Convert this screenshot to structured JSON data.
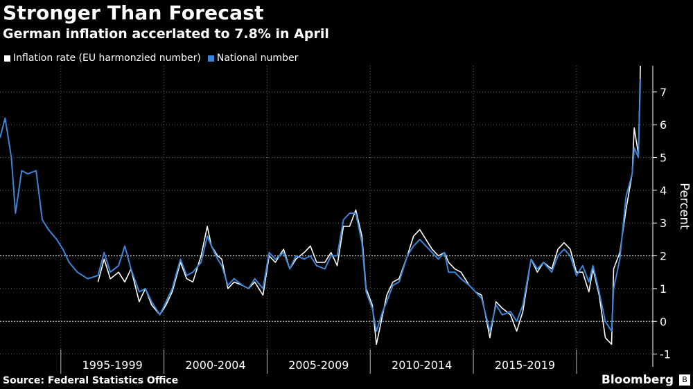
{
  "header": {
    "title": "Stronger Than Forecast",
    "subtitle": "German inflation accerlated to 7.8% in April"
  },
  "footer": {
    "source": "Source: Federal Statistics Office",
    "brand": "Bloomberg",
    "brand_badge": "B"
  },
  "colors": {
    "eu": "#ffffff",
    "national": "#3b86d8",
    "grid": "#6b6b6b",
    "background": "#000000"
  },
  "chart_data": {
    "type": "line",
    "title": "Stronger Than Forecast",
    "subtitle": "German inflation accerlated to 7.8% in April",
    "xlabel": "",
    "ylabel": "Percent",
    "ylim": [
      -1.6,
      7.8
    ],
    "xlim": [
      1991.25,
      2022.9
    ],
    "yticks": [
      -1,
      0,
      1,
      2,
      3,
      4,
      5,
      6,
      7
    ],
    "ytick_labels": [
      "-1",
      "0",
      "1",
      "2",
      "3",
      "4",
      "5",
      "6",
      "7"
    ],
    "x_period_boundaries": [
      1994.2,
      1999.2,
      2004.2,
      2009.2,
      2014.2,
      2019.2
    ],
    "x_period_labels": [
      "1995-1999",
      "2000-2004",
      "2005-2009",
      "2010-2014",
      "2015-2019"
    ],
    "x_period_centers": [
      1996.7,
      2001.7,
      2006.7,
      2011.7,
      2016.7
    ],
    "reference_lines": [
      0,
      2
    ],
    "legend": [
      "Inflation rate (EU harmonzied number)",
      "National number"
    ],
    "series": [
      {
        "name": "Inflation rate (EU harmonzied number)",
        "x": [
          1996.0,
          1996.3,
          1996.6,
          1997.0,
          1997.3,
          1997.6,
          1998.0,
          1998.3,
          1998.6,
          1999.0,
          1999.3,
          1999.6,
          2000.0,
          2000.3,
          2000.6,
          2001.0,
          2001.3,
          2001.5,
          2001.8,
          2002.0,
          2002.3,
          2002.6,
          2003.0,
          2003.3,
          2003.6,
          2004.0,
          2004.3,
          2004.6,
          2005.0,
          2005.3,
          2005.6,
          2006.0,
          2006.3,
          2006.6,
          2007.0,
          2007.3,
          2007.6,
          2007.9,
          2008.2,
          2008.5,
          2008.8,
          2009.0,
          2009.3,
          2009.5,
          2009.8,
          2010.0,
          2010.3,
          2010.6,
          2011.0,
          2011.3,
          2011.6,
          2011.9,
          2012.2,
          2012.5,
          2012.8,
          2013.0,
          2013.3,
          2013.6,
          2014.0,
          2014.3,
          2014.6,
          2015.0,
          2015.3,
          2015.6,
          2016.0,
          2016.3,
          2016.6,
          2017.0,
          2017.3,
          2017.6,
          2018.0,
          2018.3,
          2018.6,
          2018.9,
          2019.2,
          2019.5,
          2019.8,
          2020.0,
          2020.3,
          2020.6,
          2020.9,
          2021.0,
          2021.3,
          2021.6,
          2021.9,
          2022.0,
          2022.2,
          2022.3
        ],
        "values": [
          1.2,
          1.9,
          1.3,
          1.5,
          1.2,
          1.6,
          0.6,
          1.0,
          0.5,
          0.2,
          0.5,
          0.9,
          1.8,
          1.3,
          1.2,
          2.0,
          2.9,
          2.3,
          2.0,
          1.9,
          1.0,
          1.2,
          1.1,
          1.0,
          1.2,
          0.8,
          2.0,
          1.8,
          2.2,
          1.6,
          1.9,
          2.1,
          2.3,
          1.8,
          1.8,
          2.1,
          1.7,
          2.9,
          2.9,
          3.4,
          2.6,
          1.0,
          0.5,
          -0.7,
          0.2,
          0.8,
          1.2,
          1.3,
          2.0,
          2.6,
          2.8,
          2.5,
          2.2,
          2.0,
          2.1,
          1.8,
          1.6,
          1.5,
          1.1,
          0.9,
          0.8,
          -0.5,
          0.6,
          0.4,
          0.2,
          -0.3,
          0.3,
          1.9,
          1.5,
          1.8,
          1.6,
          2.2,
          2.4,
          2.2,
          1.5,
          1.5,
          0.9,
          1.6,
          0.8,
          -0.5,
          -0.7,
          1.6,
          2.1,
          3.4,
          4.5,
          5.9,
          5.1,
          7.8
        ]
      },
      {
        "name": "National number",
        "x": [
          1991.25,
          1991.5,
          1991.8,
          1992.0,
          1992.3,
          1992.6,
          1993.0,
          1993.3,
          1993.6,
          1994.0,
          1994.3,
          1994.6,
          1995.0,
          1995.5,
          1996.0,
          1996.3,
          1996.6,
          1997.0,
          1997.3,
          1997.6,
          1998.0,
          1998.3,
          1998.6,
          1999.0,
          1999.3,
          1999.6,
          2000.0,
          2000.3,
          2000.6,
          2001.0,
          2001.3,
          2001.5,
          2001.8,
          2002.0,
          2002.3,
          2002.6,
          2003.0,
          2003.3,
          2003.6,
          2004.0,
          2004.3,
          2004.6,
          2005.0,
          2005.3,
          2005.6,
          2006.0,
          2006.3,
          2006.6,
          2007.0,
          2007.3,
          2007.6,
          2007.9,
          2008.2,
          2008.5,
          2008.8,
          2009.0,
          2009.3,
          2009.5,
          2009.8,
          2010.0,
          2010.3,
          2010.6,
          2011.0,
          2011.3,
          2011.6,
          2011.9,
          2012.2,
          2012.5,
          2012.8,
          2013.0,
          2013.3,
          2013.6,
          2014.0,
          2014.3,
          2014.6,
          2015.0,
          2015.3,
          2015.6,
          2016.0,
          2016.3,
          2016.6,
          2017.0,
          2017.3,
          2017.6,
          2018.0,
          2018.3,
          2018.6,
          2018.9,
          2019.2,
          2019.5,
          2019.8,
          2020.0,
          2020.3,
          2020.6,
          2020.9,
          2021.0,
          2021.3,
          2021.6,
          2021.9,
          2022.0,
          2022.2,
          2022.3
        ],
        "values": [
          5.6,
          6.2,
          5.0,
          3.3,
          4.6,
          4.5,
          4.6,
          3.1,
          2.8,
          2.5,
          2.2,
          1.8,
          1.5,
          1.3,
          1.4,
          2.1,
          1.5,
          1.7,
          2.3,
          1.6,
          0.9,
          1.0,
          0.6,
          0.2,
          0.6,
          1.0,
          1.9,
          1.4,
          1.5,
          1.8,
          2.6,
          2.3,
          1.9,
          1.7,
          1.1,
          1.3,
          1.1,
          1.0,
          1.3,
          1.0,
          2.1,
          1.9,
          2.1,
          1.6,
          2.0,
          1.9,
          2.0,
          1.7,
          1.6,
          2.0,
          2.0,
          3.1,
          3.3,
          3.3,
          2.4,
          0.9,
          0.4,
          -0.3,
          0.3,
          0.6,
          1.1,
          1.2,
          2.0,
          2.3,
          2.5,
          2.3,
          2.1,
          1.9,
          2.1,
          1.5,
          1.5,
          1.3,
          1.1,
          0.9,
          0.7,
          -0.3,
          0.5,
          0.2,
          0.3,
          0.0,
          0.5,
          1.9,
          1.6,
          1.8,
          1.5,
          2.0,
          2.2,
          2.0,
          1.4,
          1.7,
          1.2,
          1.7,
          0.9,
          0.0,
          -0.3,
          1.0,
          1.9,
          3.8,
          4.5,
          5.3,
          5.0,
          7.4
        ]
      }
    ]
  }
}
